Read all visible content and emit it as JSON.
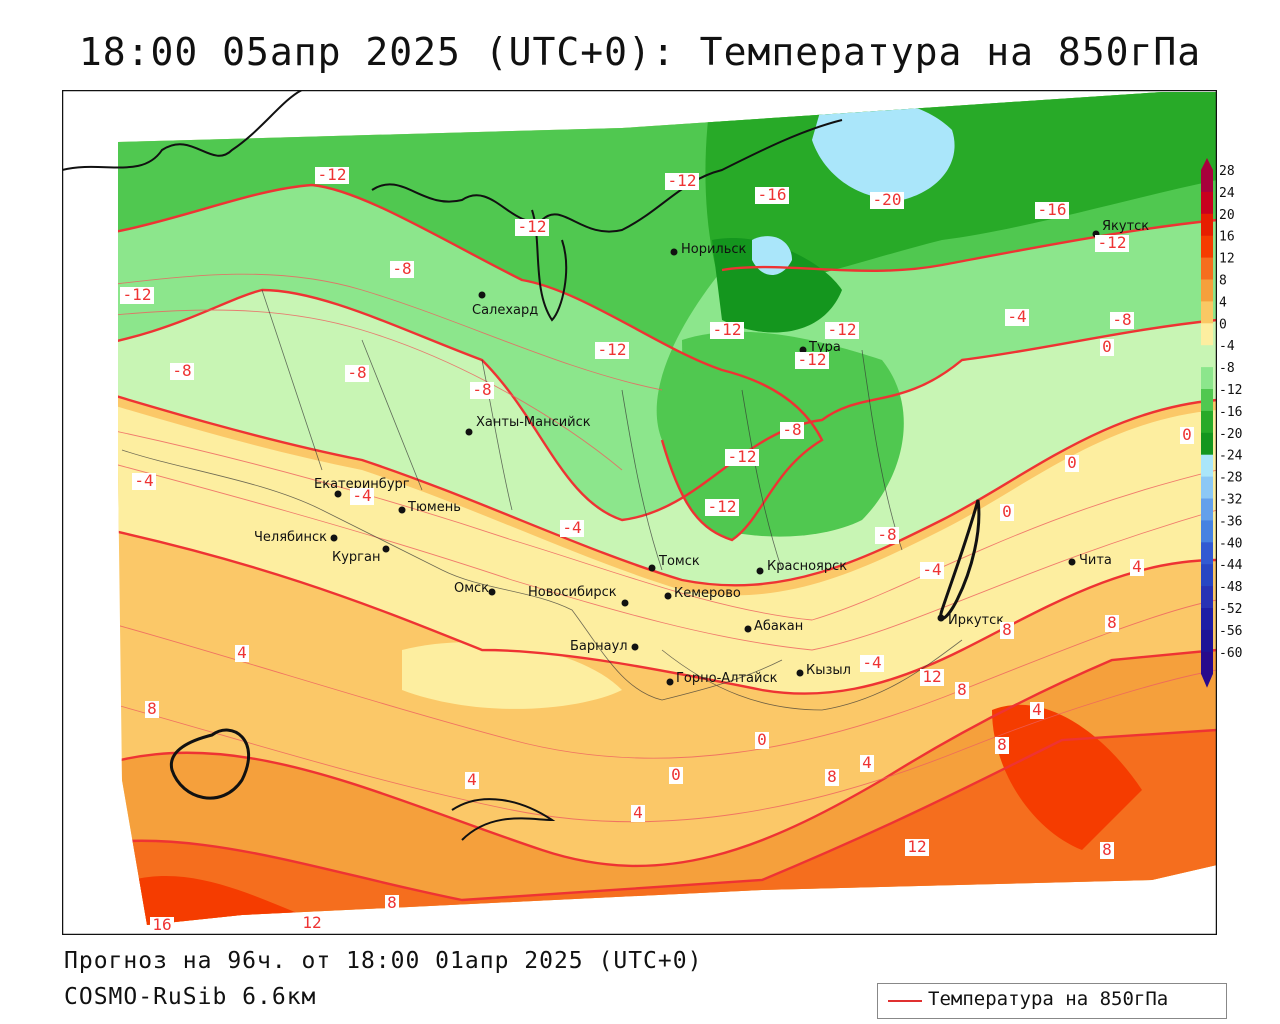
{
  "title": "18:00 05апр 2025 (UTC+0): Температура на 850гПа",
  "footer": {
    "forecast": "Прогноз на 96ч. от 18:00 01апр 2025 (UTC+0)",
    "model": "COSMO-RuSib 6.6км"
  },
  "legend": {
    "label": "Температура на 850гПа",
    "line_color": "#e03030"
  },
  "scale": {
    "values": [
      "28",
      "24",
      "20",
      "16",
      "12",
      "8",
      "4",
      "0",
      "-4",
      "-8",
      "-12",
      "-16",
      "-20",
      "-24",
      "-28",
      "-32",
      "-36",
      "-40",
      "-44",
      "-48",
      "-52",
      "-56",
      "-60"
    ],
    "colors": [
      "#a8003c",
      "#c8001e",
      "#e61e00",
      "#f53c00",
      "#f56e1e",
      "#f5a03c",
      "#fac864",
      "#fdeea0",
      "#c8f5b4",
      "#8ce68c",
      "#50c850",
      "#28aa28",
      "#14961e",
      "#aae6fa",
      "#8cc8f5",
      "#64a0eb",
      "#4682e1",
      "#325ad2",
      "#2846c3",
      "#2832b4",
      "#1e1ea5",
      "#1e1496",
      "#280a8c"
    ]
  },
  "cities": [
    {
      "name": "Норильск"
    },
    {
      "name": "Якутск"
    },
    {
      "name": "Салехард"
    },
    {
      "name": "Тура"
    },
    {
      "name": "Ханты-Мансийск"
    },
    {
      "name": "Екатеринбург"
    },
    {
      "name": "Тюмень"
    },
    {
      "name": "Челябинск"
    },
    {
      "name": "Курган"
    },
    {
      "name": "Омск"
    },
    {
      "name": "Новосибирск"
    },
    {
      "name": "Томск"
    },
    {
      "name": "Красноярск"
    },
    {
      "name": "Кемерово"
    },
    {
      "name": "Абакан"
    },
    {
      "name": "Барнаул"
    },
    {
      "name": "Горно-Алтайск"
    },
    {
      "name": "Кызыл"
    },
    {
      "name": "Иркутск"
    },
    {
      "name": "Чита"
    }
  ],
  "isotherm_labels": [
    "-12",
    "-12",
    "-16",
    "-20",
    "-16",
    "-12",
    "-12",
    "-8",
    "-12",
    "-8",
    "-8",
    "-12",
    "-12",
    "-8",
    "-4",
    "-12",
    "-12",
    "-8",
    "-8",
    "-12",
    "-12",
    "-8",
    "-4",
    "0",
    "0",
    "-4",
    "0",
    "-4",
    "-4",
    "-4",
    "0",
    "4",
    "4",
    "8",
    "8",
    "4",
    "12",
    "8",
    "8",
    "8",
    "4",
    "0",
    "4",
    "4",
    "8",
    "0",
    "8",
    "12",
    "16",
    "12",
    "8"
  ]
}
